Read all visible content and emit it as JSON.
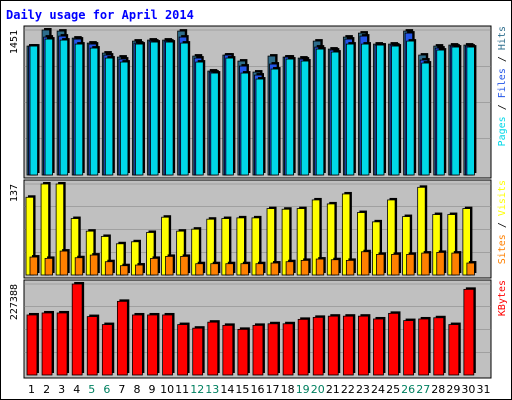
{
  "colors": {
    "frame_bg": "#ffffff",
    "plot_bg": "#c0c0c0",
    "title": "#0000ff",
    "hits": "#2d6d8c",
    "files": "#2356e8",
    "pages": "#00d8e8",
    "visits": "#ffff00",
    "sites": "#ff8000",
    "kbytes": "#ff0000",
    "weekday": "#000000",
    "weekend": "#008060"
  },
  "chart_data": [
    {
      "type": "bar",
      "title": "Daily usage for April 2014",
      "ylabel_max": "1451",
      "ylim": [
        0,
        1451
      ],
      "legend": [
        {
          "name": "Pages",
          "color_key": "pages"
        },
        {
          "name": "Files",
          "color_key": "files"
        },
        {
          "name": "Hits",
          "color_key": "hits"
        }
      ],
      "legend_sep": " / ",
      "categories": [
        1,
        2,
        3,
        4,
        5,
        6,
        7,
        8,
        9,
        10,
        11,
        12,
        13,
        14,
        15,
        16,
        17,
        18,
        19,
        20,
        21,
        22,
        23,
        24,
        25,
        26,
        27,
        28,
        29,
        30,
        31
      ],
      "series": [
        {
          "name": "Hits",
          "values": [
            1290,
            1451,
            1440,
            1370,
            1320,
            1220,
            1180,
            1340,
            1350,
            1350,
            1440,
            1190,
            1040,
            1200,
            1140,
            1030,
            1190,
            1180,
            1170,
            1340,
            1260,
            1380,
            1420,
            1310,
            1310,
            1440,
            1200,
            1290,
            1300,
            1300,
            null
          ]
        },
        {
          "name": "Files",
          "values": [
            1290,
            1380,
            1390,
            1360,
            1310,
            1200,
            1160,
            1320,
            1340,
            1340,
            1380,
            1170,
            1030,
            1200,
            1090,
            1000,
            1110,
            1180,
            1160,
            1280,
            1250,
            1360,
            1390,
            1300,
            1300,
            1420,
            1150,
            1270,
            1290,
            1290,
            null
          ]
        },
        {
          "name": "Pages",
          "values": [
            1290,
            1360,
            1350,
            1310,
            1270,
            1170,
            1130,
            1310,
            1330,
            1330,
            1320,
            1130,
            1020,
            1170,
            1020,
            960,
            1060,
            1160,
            1140,
            1260,
            1230,
            1310,
            1310,
            1300,
            1290,
            1340,
            1120,
            1250,
            1280,
            1280,
            null
          ]
        }
      ]
    },
    {
      "type": "bar",
      "ylabel_max": "137",
      "ylim": [
        0,
        137
      ],
      "legend": [
        {
          "name": "Sites",
          "color_key": "sites"
        },
        {
          "name": "Visits",
          "color_key": "visits"
        }
      ],
      "legend_sep": " / ",
      "categories": [
        1,
        2,
        3,
        4,
        5,
        6,
        7,
        8,
        9,
        10,
        11,
        12,
        13,
        14,
        15,
        16,
        17,
        18,
        19,
        20,
        21,
        22,
        23,
        24,
        25,
        26,
        27,
        28,
        29,
        30,
        31
      ],
      "series": [
        {
          "name": "Visits",
          "values": [
            117,
            137,
            137,
            85,
            66,
            58,
            47,
            50,
            64,
            87,
            66,
            69,
            84,
            85,
            86,
            86,
            100,
            99,
            100,
            113,
            107,
            122,
            94,
            80,
            113,
            88,
            132,
            91,
            91,
            100,
            null
          ]
        },
        {
          "name": "Sites",
          "values": [
            27,
            25,
            36,
            26,
            30,
            20,
            14,
            15,
            25,
            28,
            28,
            17,
            17,
            17,
            17,
            17,
            18,
            20,
            22,
            24,
            23,
            22,
            35,
            31,
            31,
            31,
            33,
            34,
            33,
            18,
            null
          ]
        }
      ]
    },
    {
      "type": "bar",
      "ylabel_max": "227388",
      "ylim": [
        0,
        227388
      ],
      "legend": [
        {
          "name": "KBytes",
          "color_key": "kbytes"
        }
      ],
      "legend_sep": "",
      "categories": [
        1,
        2,
        3,
        4,
        5,
        6,
        7,
        8,
        9,
        10,
        11,
        12,
        13,
        14,
        15,
        16,
        17,
        18,
        19,
        20,
        21,
        22,
        23,
        24,
        25,
        26,
        27,
        28,
        29,
        30,
        31
      ],
      "series": [
        {
          "name": "KBytes",
          "values": [
            150000,
            155000,
            155000,
            227388,
            146000,
            126000,
            184000,
            150000,
            150000,
            150000,
            126000,
            117000,
            132000,
            124000,
            114000,
            124000,
            128000,
            128000,
            139000,
            144000,
            147000,
            147000,
            147000,
            140000,
            154000,
            136000,
            140000,
            143000,
            126000,
            214000,
            null
          ]
        }
      ]
    }
  ]
}
